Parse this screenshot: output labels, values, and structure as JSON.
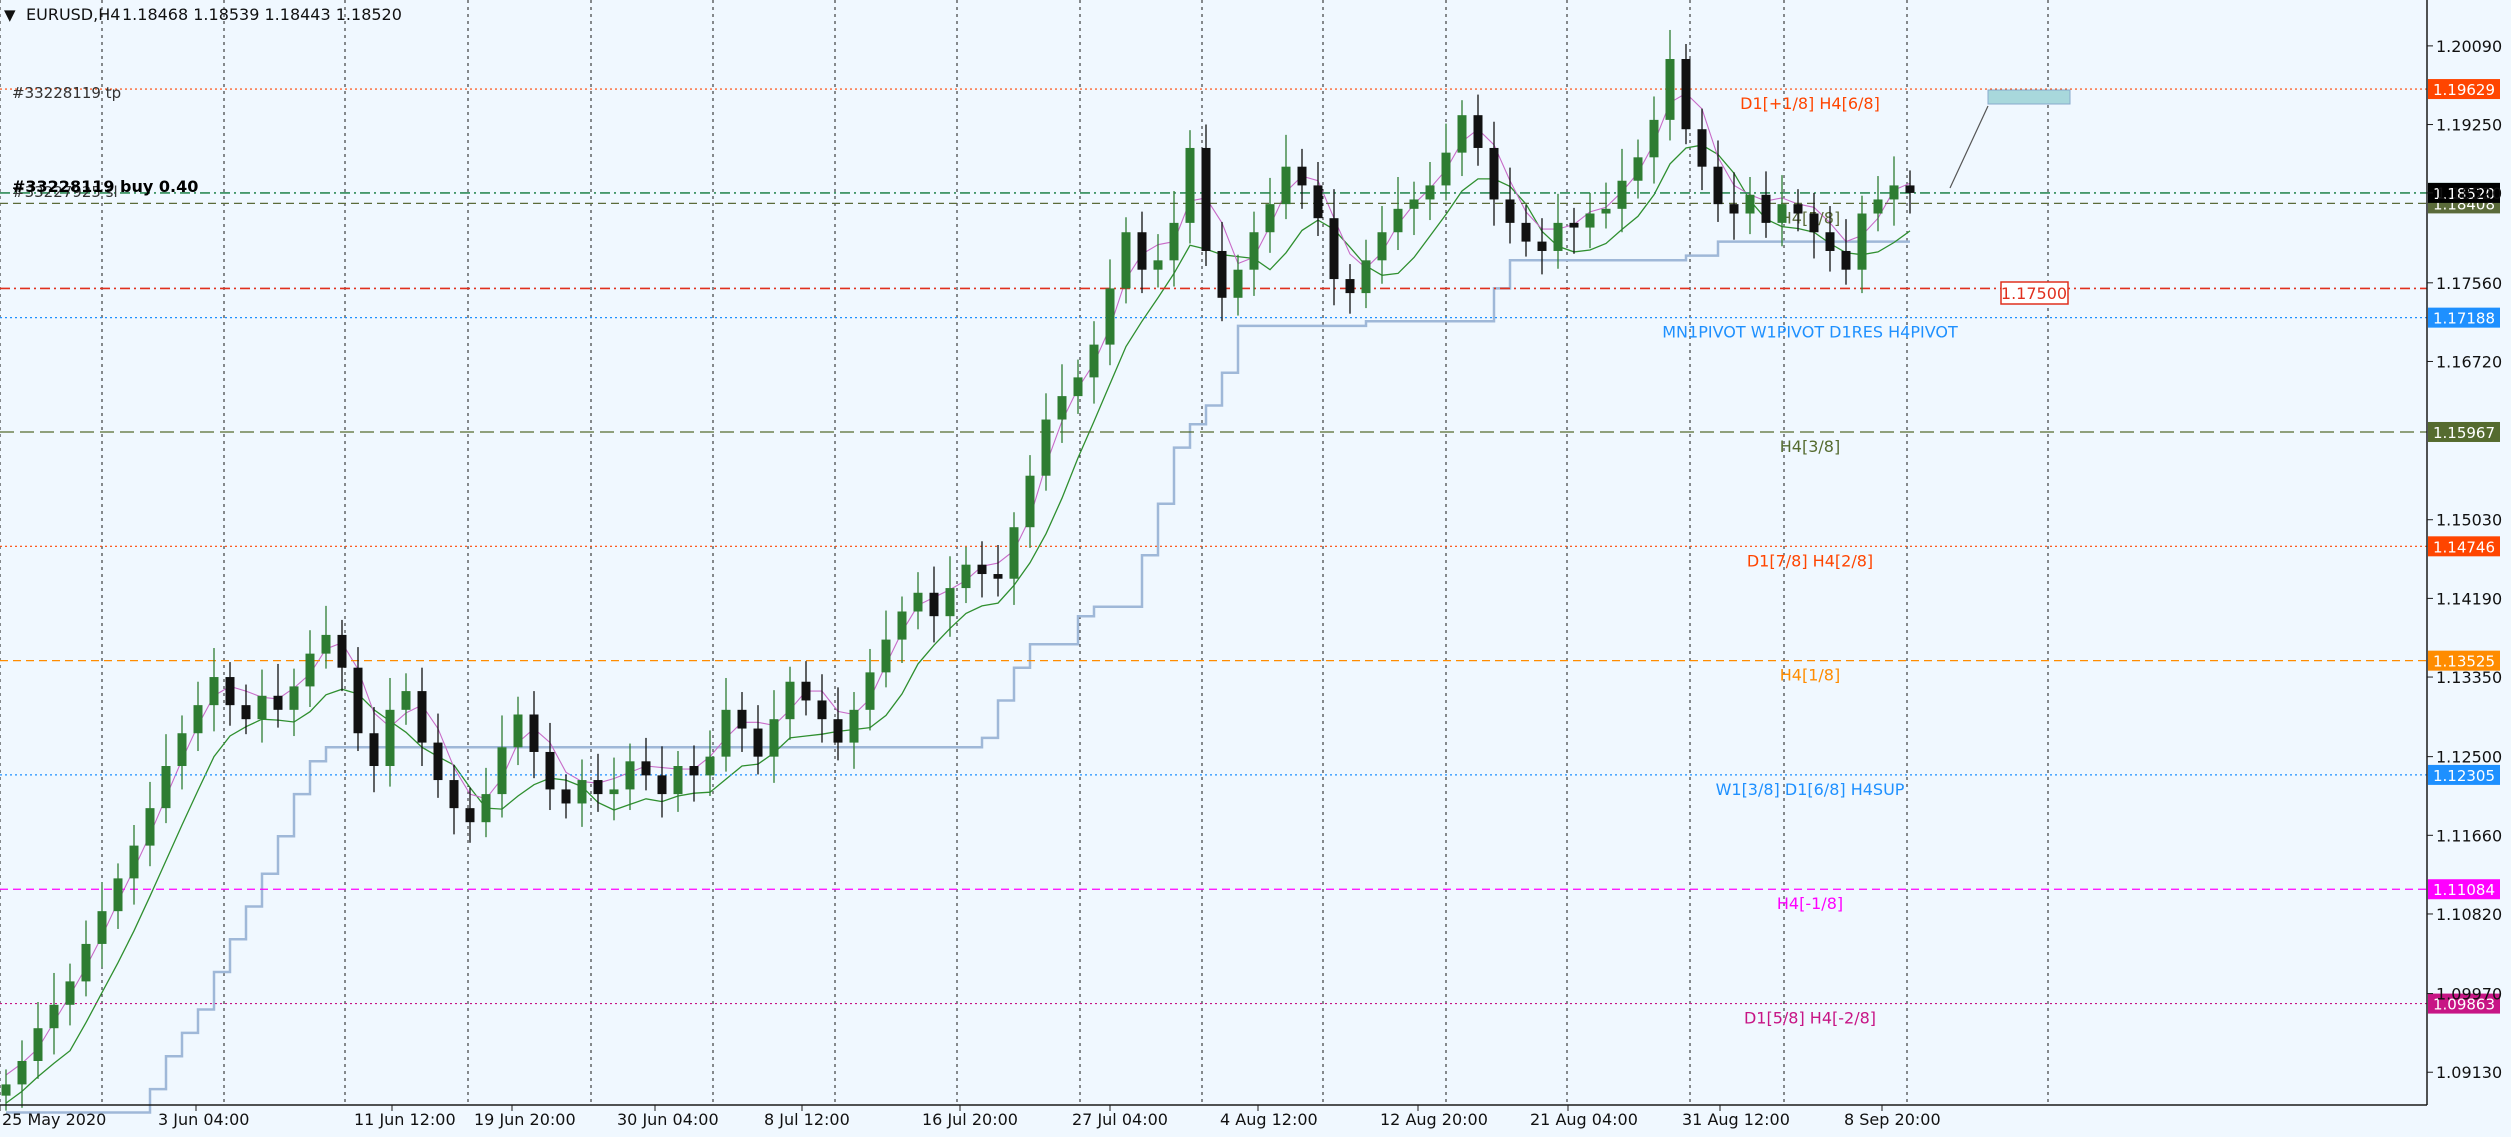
{
  "header": {
    "menu_glyph": "▼",
    "symbol": "EURUSD,H4",
    "ohlc": "1.18468 1.18539 1.18443 1.18520"
  },
  "colors": {
    "background": "#f0f8ff",
    "axis": "#1a1a1a",
    "grid": "#1a1a1a",
    "bull": "#2e7d32",
    "bear": "#111111",
    "ma_green": "#2f8f2f",
    "ma_pink": "#c86bc8",
    "step_line": "#9fb8d8",
    "tp_line": "#ff4500",
    "sl_line": "#e0301e",
    "entry_line": "#2e8b57",
    "current_price_line": "#5b6b3a"
  },
  "price_axis": {
    "ticks": [
      "1.20090",
      "1.19250",
      "1.18520",
      "1.17560",
      "1.16720",
      "1.15030",
      "1.14190",
      "1.13350",
      "1.12500",
      "1.11660",
      "1.10820",
      "1.09970",
      "1.09130"
    ]
  },
  "time_axis": {
    "labels": [
      "25 May 2020",
      "3 Jun 04:00",
      "11 Jun 12:00",
      "19 Jun 20:00",
      "30 Jun 04:00",
      "8 Jul 12:00",
      "16 Jul 20:00",
      "27 Jul 04:00",
      "4 Aug 12:00",
      "12 Aug 20:00",
      "21 Aug 04:00",
      "31 Aug 12:00",
      "8 Sep 20:00"
    ]
  },
  "orders": {
    "tp": "#33228119 tp",
    "buy": "#33228119 buy 0.40",
    "sl": "#33227925 sl"
  },
  "levels": [
    {
      "name": "tp-line",
      "price": 1.19629,
      "label": "D1[+1/8] H4[6/8]",
      "price_label": "1.19629",
      "color": "#ff4500",
      "style": "dot"
    },
    {
      "name": "entry-line",
      "price": 1.1852,
      "label": "",
      "price_label": "1.18520",
      "color": "#2e8b57",
      "style": "dashdot"
    },
    {
      "name": "h4-5-8-line",
      "price": 1.18408,
      "label": "H4[5/8]",
      "price_label": "1.18408",
      "color": "#5b6b3a",
      "style": "dash"
    },
    {
      "name": "sl-line",
      "price": 1.175,
      "label": "",
      "price_label": "",
      "color": "#e0301e",
      "style": "dashdot"
    },
    {
      "name": "pivot-line",
      "price": 1.17188,
      "label": "MN1PIVOT W1PIVOT D1RES H4PIVOT",
      "price_label": "1.17188",
      "color": "#1e90ff",
      "style": "dot"
    },
    {
      "name": "h4-3-8-line",
      "price": 1.15967,
      "label": "H4[3/8]",
      "price_label": "1.15967",
      "color": "#556b2f",
      "style": "longdash"
    },
    {
      "name": "d1-7-8-line",
      "price": 1.14746,
      "label": "D1[7/8] H4[2/8]",
      "price_label": "1.14746",
      "color": "#ff4500",
      "style": "dot"
    },
    {
      "name": "h4-1-8-line",
      "price": 1.13525,
      "label": "H4[1/8]",
      "price_label": "1.13525",
      "color": "#ff8c00",
      "style": "dash"
    },
    {
      "name": "w1-3-8-line",
      "price": 1.12305,
      "label": "W1[3/8] D1[6/8] H4SUP",
      "price_label": "1.12305",
      "color": "#1e90ff",
      "style": "dot"
    },
    {
      "name": "h4-minus-1-8-line",
      "price": 1.11084,
      "label": "H4[-1/8]",
      "price_label": "1.11084",
      "color": "#ff00ff",
      "style": "dash"
    },
    {
      "name": "d1-5-8-line",
      "price": 1.09863,
      "label": "D1[5/8] H4[-2/8]",
      "price_label": "1.09863",
      "color": "#c71585",
      "style": "dot"
    }
  ],
  "sl_price_tag": "1.17500",
  "chart_data": {
    "type": "candlestick",
    "symbol": "EURUSD",
    "timeframe": "H4",
    "ylim": [
      1.0878,
      1.2058
    ],
    "candles_close": [
      1.09,
      1.0925,
      1.096,
      1.0985,
      1.101,
      1.105,
      1.1085,
      1.112,
      1.1155,
      1.1195,
      1.124,
      1.1275,
      1.1305,
      1.1335,
      1.1305,
      1.129,
      1.1315,
      1.13,
      1.1325,
      1.136,
      1.138,
      1.1345,
      1.1275,
      1.124,
      1.13,
      1.132,
      1.1265,
      1.1225,
      1.1195,
      1.118,
      1.121,
      1.126,
      1.1295,
      1.1255,
      1.1215,
      1.12,
      1.1225,
      1.121,
      1.1215,
      1.1245,
      1.123,
      1.121,
      1.124,
      1.123,
      1.125,
      1.13,
      1.128,
      1.125,
      1.129,
      1.133,
      1.131,
      1.129,
      1.1265,
      1.13,
      1.134,
      1.1375,
      1.1405,
      1.1425,
      1.14,
      1.143,
      1.1455,
      1.1445,
      1.144,
      1.1495,
      1.155,
      1.161,
      1.1635,
      1.1655,
      1.169,
      1.175,
      1.181,
      1.177,
      1.178,
      1.182,
      1.19,
      1.179,
      1.174,
      1.177,
      1.181,
      1.184,
      1.188,
      1.186,
      1.1825,
      1.176,
      1.1745,
      1.178,
      1.181,
      1.1835,
      1.1845,
      1.186,
      1.1895,
      1.1935,
      1.19,
      1.1845,
      1.182,
      1.18,
      1.179,
      1.182,
      1.1815,
      1.183,
      1.1835,
      1.1865,
      1.189,
      1.193,
      1.1995,
      1.192,
      1.188,
      1.184,
      1.183,
      1.185,
      1.182,
      1.184,
      1.183,
      1.181,
      1.179,
      1.177,
      1.183,
      1.1845,
      1.186,
      1.1852
    ],
    "current_price": 1.1852
  }
}
